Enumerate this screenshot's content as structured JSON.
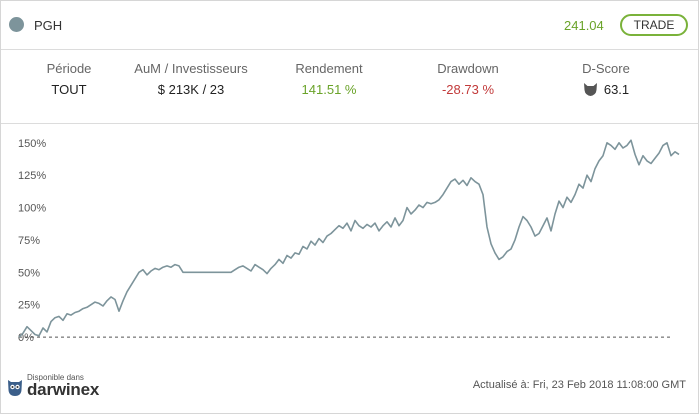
{
  "header": {
    "symbol": "PGH",
    "price": "241.04",
    "trade_label": "TRADE"
  },
  "stats": {
    "period_label": "Période",
    "period_value": "TOUT",
    "aum_label": "AuM / Investisseurs",
    "aum_value": "$ 213K / 23",
    "return_label": "Rendement",
    "return_value": "141.51 %",
    "drawdown_label": "Drawdown",
    "drawdown_value": "-28.73 %",
    "dscore_label": "D-Score",
    "dscore_value": "63.1"
  },
  "footer": {
    "available_text": "Disponible dans",
    "brand": "darwinex",
    "updated_text": "Actualisé à: Fri, 23 Feb 2018 11:08:00 GMT"
  },
  "colors": {
    "line": "#7d949b",
    "positive": "#6aa329",
    "negative": "#c23a3a",
    "accent_border": "#7ab23a"
  },
  "chart_data": {
    "type": "line",
    "ylim": [
      -3,
      156
    ],
    "yticks": [
      "0%",
      "25%",
      "50%",
      "75%",
      "100%",
      "125%",
      "150%"
    ],
    "ytick_values": [
      0,
      25,
      50,
      75,
      100,
      125,
      150
    ],
    "baseline": 0,
    "grid": false,
    "series": [
      {
        "values": [
          0,
          3,
          8,
          5,
          2,
          1,
          7,
          4,
          12,
          15,
          16,
          13,
          18,
          17,
          19,
          20,
          22,
          23,
          25,
          27,
          26,
          24,
          28,
          31,
          29,
          20,
          28,
          35,
          40,
          45,
          50,
          52,
          48,
          51,
          53,
          52,
          54,
          55,
          54,
          56,
          55,
          50,
          50,
          50,
          50,
          50,
          50,
          50,
          50,
          50,
          50,
          50,
          50,
          50,
          52,
          54,
          55,
          53,
          51,
          56,
          54,
          52,
          49,
          53,
          56,
          60,
          57,
          63,
          61,
          65,
          64,
          70,
          68,
          74,
          71,
          76,
          73,
          78,
          80,
          83,
          86,
          84,
          88,
          82,
          90,
          86,
          84,
          87,
          85,
          88,
          82,
          86,
          89,
          85,
          92,
          86,
          90,
          100,
          95,
          98,
          102,
          100,
          104,
          103,
          104,
          106,
          110,
          115,
          120,
          122,
          118,
          121,
          117,
          123,
          120,
          118,
          110,
          85,
          72,
          65,
          60,
          62,
          66,
          68,
          75,
          85,
          93,
          90,
          85,
          78,
          80,
          86,
          92,
          82,
          95,
          105,
          100,
          108,
          104,
          110,
          118,
          115,
          125,
          120,
          130,
          136,
          140,
          150,
          148,
          145,
          150,
          146,
          148,
          152,
          141,
          133,
          140,
          136,
          134,
          138,
          142,
          148,
          150,
          140,
          143,
          141
        ]
      }
    ]
  }
}
